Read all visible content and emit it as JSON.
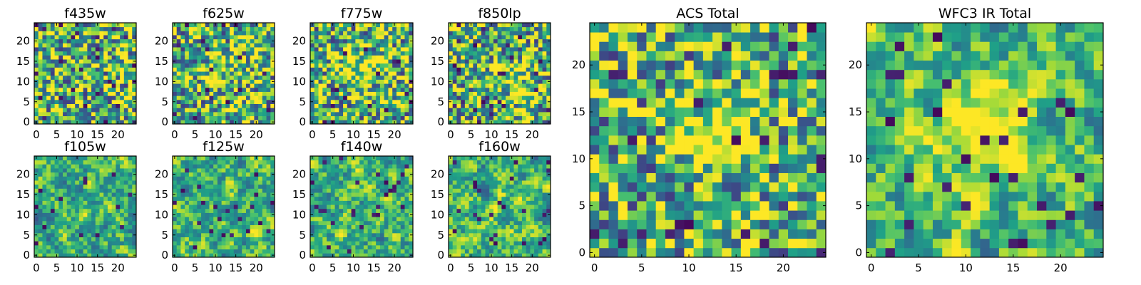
{
  "chart_data": [
    {
      "type": "heatmap",
      "title": "f435w",
      "grid_size": 25,
      "xticks": [
        0,
        5,
        10,
        15,
        20
      ],
      "yticks": [
        0,
        5,
        10,
        15,
        20
      ],
      "xlim": [
        -0.5,
        24.5
      ],
      "ylim": [
        -0.5,
        24.5
      ],
      "colormap": "viridis"
    },
    {
      "type": "heatmap",
      "title": "f625w",
      "grid_size": 25,
      "xticks": [
        0,
        5,
        10,
        15,
        20
      ],
      "yticks": [
        0,
        5,
        10,
        15,
        20
      ],
      "xlim": [
        -0.5,
        24.5
      ],
      "ylim": [
        -0.5,
        24.5
      ],
      "colormap": "viridis"
    },
    {
      "type": "heatmap",
      "title": "f775w",
      "grid_size": 25,
      "xticks": [
        0,
        5,
        10,
        15,
        20
      ],
      "yticks": [
        0,
        5,
        10,
        15,
        20
      ],
      "xlim": [
        -0.5,
        24.5
      ],
      "ylim": [
        -0.5,
        24.5
      ],
      "colormap": "viridis"
    },
    {
      "type": "heatmap",
      "title": "f850lp",
      "grid_size": 25,
      "xticks": [
        0,
        5,
        10,
        15,
        20
      ],
      "yticks": [
        0,
        5,
        10,
        15,
        20
      ],
      "xlim": [
        -0.5,
        24.5
      ],
      "ylim": [
        -0.5,
        24.5
      ],
      "colormap": "viridis"
    },
    {
      "type": "heatmap",
      "title": "f105w",
      "grid_size": 25,
      "xticks": [
        0,
        5,
        10,
        15,
        20
      ],
      "yticks": [
        0,
        5,
        10,
        15,
        20
      ],
      "xlim": [
        -0.5,
        24.5
      ],
      "ylim": [
        -0.5,
        24.5
      ],
      "colormap": "viridis"
    },
    {
      "type": "heatmap",
      "title": "f125w",
      "grid_size": 25,
      "xticks": [
        0,
        5,
        10,
        15,
        20
      ],
      "yticks": [
        0,
        5,
        10,
        15,
        20
      ],
      "xlim": [
        -0.5,
        24.5
      ],
      "ylim": [
        -0.5,
        24.5
      ],
      "colormap": "viridis"
    },
    {
      "type": "heatmap",
      "title": "f140w",
      "grid_size": 25,
      "xticks": [
        0,
        5,
        10,
        15,
        20
      ],
      "yticks": [
        0,
        5,
        10,
        15,
        20
      ],
      "xlim": [
        -0.5,
        24.5
      ],
      "ylim": [
        -0.5,
        24.5
      ],
      "colormap": "viridis"
    },
    {
      "type": "heatmap",
      "title": "f160w",
      "grid_size": 25,
      "xticks": [
        0,
        5,
        10,
        15,
        20
      ],
      "yticks": [
        0,
        5,
        10,
        15,
        20
      ],
      "xlim": [
        -0.5,
        24.5
      ],
      "ylim": [
        -0.5,
        24.5
      ],
      "colormap": "viridis"
    },
    {
      "type": "heatmap",
      "title": "ACS Total",
      "grid_size": 25,
      "xticks": [
        0,
        5,
        10,
        15,
        20
      ],
      "yticks": [
        0,
        5,
        10,
        15,
        20
      ],
      "xlim": [
        -0.5,
        24.5
      ],
      "ylim": [
        -0.5,
        24.5
      ],
      "colormap": "viridis"
    },
    {
      "type": "heatmap",
      "title": "WFC3 IR Total",
      "grid_size": 25,
      "xticks": [
        0,
        5,
        10,
        15,
        20
      ],
      "yticks": [
        0,
        5,
        10,
        15,
        20
      ],
      "xlim": [
        -0.5,
        24.5
      ],
      "ylim": [
        -0.5,
        24.5
      ],
      "colormap": "viridis"
    }
  ]
}
